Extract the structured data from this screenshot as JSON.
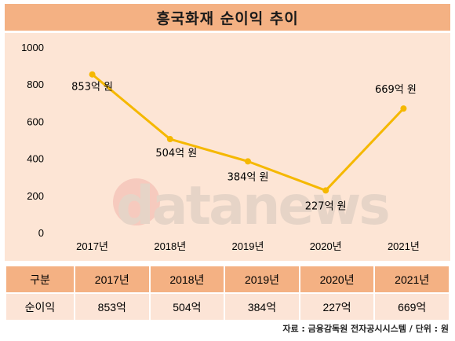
{
  "chart_data": {
    "type": "line",
    "title": "흥국화재 순이익 추이",
    "categories": [
      "2017년",
      "2018년",
      "2019년",
      "2020년",
      "2021년"
    ],
    "series": [
      {
        "values": [
          853,
          504,
          384,
          227,
          669
        ],
        "labels": [
          "853억 원",
          "504억 원",
          "384억 원",
          "227억 원",
          "669억 원"
        ]
      }
    ],
    "ylim": [
      0,
      1000
    ],
    "yticks": [
      0,
      200,
      400,
      600,
      800,
      1000
    ],
    "grid": false,
    "line_color": "#f5b800"
  },
  "watermark": "datanews",
  "table": {
    "header": [
      "구분",
      "2017년",
      "2018년",
      "2019년",
      "2020년",
      "2021년"
    ],
    "row": [
      "순이익",
      "853억",
      "504억",
      "384억",
      "227억",
      "669억"
    ]
  },
  "source": "자료 : 금융감독원 전자공시시스템 / 단위 : 원"
}
